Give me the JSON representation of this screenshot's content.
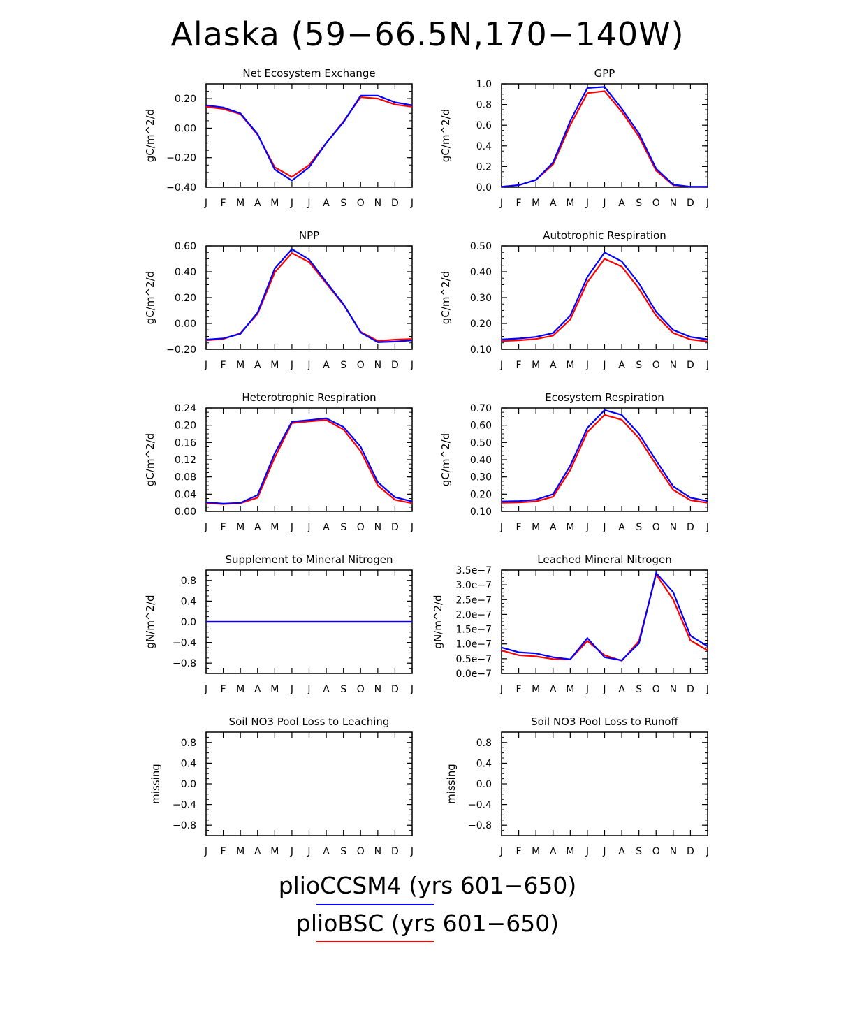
{
  "title": "Alaska (59−66.5N,170−140W)",
  "colors": {
    "series1": "#0000ff",
    "series2": "#ff0000"
  },
  "legend": [
    {
      "label": "plioCCSM4 (yrs 601−650)",
      "color": "#0000ff"
    },
    {
      "label": "plioBSC (yrs 601−650)",
      "color": "#ff0000"
    }
  ],
  "month_labels": [
    "J",
    "F",
    "M",
    "A",
    "M",
    "J",
    "J",
    "A",
    "S",
    "O",
    "N",
    "D",
    "J"
  ],
  "chart_data": [
    {
      "type": "line",
      "title": "Net Ecosystem Exchange",
      "ylabel": "gC/m^2/d",
      "ylim": [
        -0.4,
        0.3
      ],
      "yticks": [
        "0.20",
        "0.00",
        "−0.20",
        "−0.40"
      ],
      "ytick_values": [
        0.2,
        0,
        -0.2,
        -0.4
      ],
      "series": [
        {
          "values": [
            0.155,
            0.14,
            0.1,
            -0.04,
            -0.28,
            -0.355,
            -0.265,
            -0.1,
            0.04,
            0.22,
            0.22,
            0.175,
            0.155
          ]
        },
        {
          "values": [
            0.145,
            0.13,
            0.095,
            -0.045,
            -0.265,
            -0.33,
            -0.25,
            -0.1,
            0.045,
            0.21,
            0.2,
            0.16,
            0.145
          ]
        }
      ]
    },
    {
      "type": "line",
      "title": "GPP",
      "ylabel": "gC/m^2/d",
      "ylim": [
        0,
        1.0
      ],
      "yticks": [
        "1.0",
        "0.8",
        "0.6",
        "0.4",
        "0.2",
        "0.0"
      ],
      "ytick_values": [
        1.0,
        0.8,
        0.6,
        0.4,
        0.2,
        0.0
      ],
      "series": [
        {
          "values": [
            0.005,
            0.02,
            0.07,
            0.24,
            0.64,
            0.96,
            0.97,
            0.76,
            0.52,
            0.18,
            0.025,
            0.005,
            0.005
          ]
        },
        {
          "values": [
            0.005,
            0.02,
            0.07,
            0.22,
            0.6,
            0.91,
            0.93,
            0.73,
            0.49,
            0.16,
            0.02,
            0.005,
            0.005
          ]
        }
      ]
    },
    {
      "type": "line",
      "title": "NPP",
      "ylabel": "gC/m^2/d",
      "ylim": [
        -0.2,
        0.6
      ],
      "yticks": [
        "0.60",
        "0.40",
        "0.20",
        "0.00",
        "−0.20"
      ],
      "ytick_values": [
        0.6,
        0.4,
        0.2,
        0,
        -0.2
      ],
      "series": [
        {
          "values": [
            -0.125,
            -0.115,
            -0.08,
            0.085,
            0.425,
            0.575,
            0.495,
            0.32,
            0.15,
            -0.07,
            -0.145,
            -0.14,
            -0.13
          ]
        },
        {
          "values": [
            -0.13,
            -0.12,
            -0.075,
            0.075,
            0.395,
            0.545,
            0.475,
            0.31,
            0.145,
            -0.065,
            -0.135,
            -0.125,
            -0.12
          ]
        }
      ]
    },
    {
      "type": "line",
      "title": "Autotrophic Respiration",
      "ylabel": "gC/m^2/d",
      "ylim": [
        0.1,
        0.5
      ],
      "yticks": [
        "0.50",
        "0.40",
        "0.30",
        "0.20",
        "0.10"
      ],
      "ytick_values": [
        0.5,
        0.4,
        0.3,
        0.2,
        0.1
      ],
      "series": [
        {
          "values": [
            0.138,
            0.142,
            0.148,
            0.163,
            0.23,
            0.38,
            0.475,
            0.44,
            0.355,
            0.245,
            0.175,
            0.148,
            0.138
          ]
        },
        {
          "values": [
            0.132,
            0.135,
            0.14,
            0.153,
            0.215,
            0.36,
            0.45,
            0.42,
            0.335,
            0.23,
            0.163,
            0.138,
            0.13
          ]
        }
      ]
    },
    {
      "type": "line",
      "title": "Heterotrophic Respiration",
      "ylabel": "gC/m^2/d",
      "ylim": [
        0,
        0.24
      ],
      "yticks": [
        "0.24",
        "0.20",
        "0.16",
        "0.12",
        "0.08",
        "0.04",
        "0.00"
      ],
      "ytick_values": [
        0.24,
        0.2,
        0.16,
        0.12,
        0.08,
        0.04,
        0
      ],
      "series": [
        {
          "values": [
            0.021,
            0.018,
            0.02,
            0.038,
            0.135,
            0.208,
            0.212,
            0.216,
            0.196,
            0.15,
            0.068,
            0.033,
            0.023
          ]
        },
        {
          "values": [
            0.019,
            0.017,
            0.019,
            0.032,
            0.125,
            0.205,
            0.209,
            0.212,
            0.19,
            0.14,
            0.06,
            0.027,
            0.019
          ]
        }
      ]
    },
    {
      "type": "line",
      "title": "Ecosystem Respiration",
      "ylabel": "gC/m^2/d",
      "ylim": [
        0.1,
        0.7
      ],
      "yticks": [
        "0.70",
        "0.60",
        "0.50",
        "0.40",
        "0.30",
        "0.20",
        "0.10"
      ],
      "ytick_values": [
        0.7,
        0.6,
        0.5,
        0.4,
        0.3,
        0.2,
        0.1
      ],
      "series": [
        {
          "values": [
            0.158,
            0.16,
            0.168,
            0.2,
            0.365,
            0.585,
            0.688,
            0.66,
            0.55,
            0.395,
            0.245,
            0.18,
            0.16
          ]
        },
        {
          "values": [
            0.15,
            0.152,
            0.158,
            0.185,
            0.34,
            0.56,
            0.66,
            0.632,
            0.525,
            0.37,
            0.225,
            0.165,
            0.15
          ]
        }
      ]
    },
    {
      "type": "line",
      "title": "Supplement to Mineral Nitrogen",
      "ylabel": "gN/m^2/d",
      "ylim": [
        -1.0,
        1.0
      ],
      "yticks": [
        "0.8",
        "0.4",
        "0.0",
        "−0.4",
        "−0.8"
      ],
      "ytick_values": [
        0.8,
        0.4,
        0,
        -0.4,
        -0.8
      ],
      "series": [
        {
          "values": [
            0,
            0,
            0,
            0,
            0,
            0,
            0,
            0,
            0,
            0,
            0,
            0,
            0
          ]
        },
        {
          "values": [
            0,
            0,
            0,
            0,
            0,
            0,
            0,
            0,
            0,
            0,
            0,
            0,
            0
          ]
        }
      ]
    },
    {
      "type": "line",
      "title": "Leached Mineral Nitrogen",
      "ylabel": "gN/m^2/d",
      "ylim": [
        0,
        3.5e-07
      ],
      "yticks": [
        "3.5e−7",
        "3.0e−7",
        "2.5e−7",
        "2.0e−7",
        "1.5e−7",
        "1.0e−7",
        "0.5e−7",
        "0.0e−7"
      ],
      "ytick_values": [
        3.5e-07,
        3e-07,
        2.5e-07,
        2e-07,
        1.5e-07,
        1e-07,
        5e-08,
        0
      ],
      "series": [
        {
          "values": [
            8.8e-08,
            7.2e-08,
            6.8e-08,
            5.5e-08,
            4.8e-08,
            1.2e-07,
            5.5e-08,
            4.5e-08,
            1.02e-07,
            3.4e-07,
            2.75e-07,
            1.28e-07,
            9.2e-08
          ]
        },
        {
          "values": [
            7.8e-08,
            6.2e-08,
            5.8e-08,
            4.9e-08,
            4.8e-08,
            1.1e-07,
            6.2e-08,
            4.3e-08,
            1.1e-07,
            3.35e-07,
            2.5e-07,
            1.12e-07,
            7.8e-08
          ]
        }
      ]
    },
    {
      "type": "line",
      "title": "Soil NO3 Pool Loss to Leaching",
      "ylabel": "missing",
      "ylim": [
        -1.0,
        1.0
      ],
      "yticks": [
        "0.8",
        "0.4",
        "0.0",
        "−0.4",
        "−0.8"
      ],
      "ytick_values": [
        0.8,
        0.4,
        0,
        -0.4,
        -0.8
      ],
      "series": []
    },
    {
      "type": "line",
      "title": "Soil NO3 Pool Loss to Runoff",
      "ylabel": "missing",
      "ylim": [
        -1.0,
        1.0
      ],
      "yticks": [
        "0.8",
        "0.4",
        "0.0",
        "−0.4",
        "−0.8"
      ],
      "ytick_values": [
        0.8,
        0.4,
        0,
        -0.4,
        -0.8
      ],
      "series": []
    }
  ]
}
